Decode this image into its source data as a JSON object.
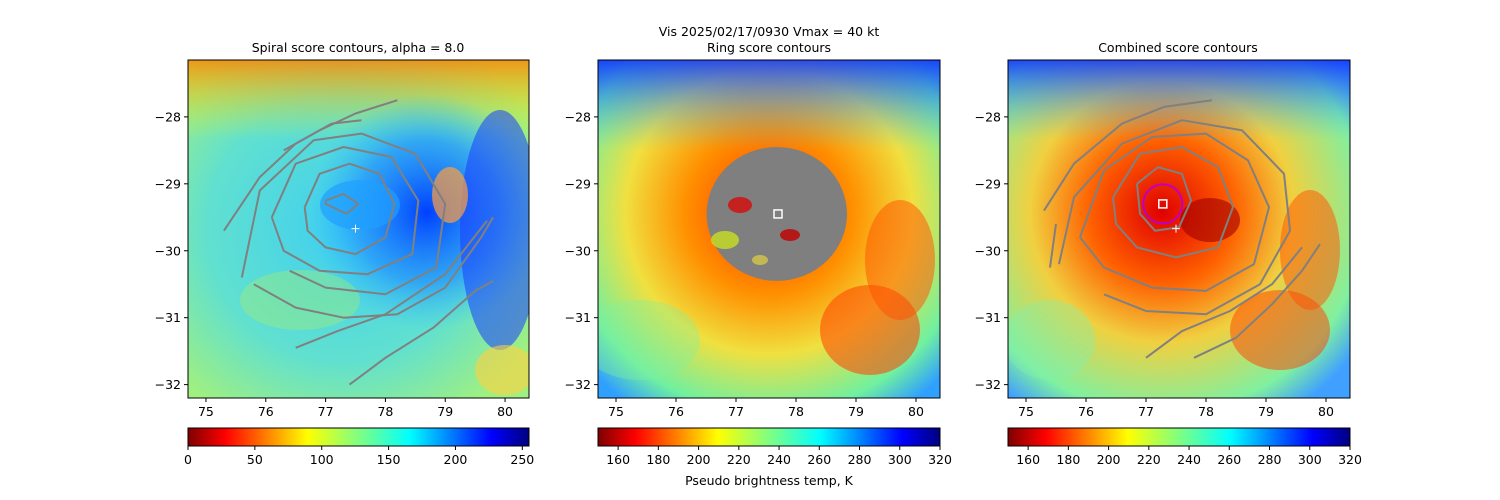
{
  "figure": {
    "suptitle_line1": "Vis  2025/02/17/0930    Vmax = 40 kt",
    "colorbar_label": "Pseudo brightness temp, K"
  },
  "colors": {
    "contour": "#808080",
    "center_marker": "#ffffff",
    "best_circle": "#c000c0"
  },
  "chart_data": [
    {
      "type": "heatmap",
      "title": "Spiral score contours, alpha =  8.0",
      "image": "visible satellite pseudo brightness temperature field (cyclone)",
      "colormap": "jet",
      "xlim": [
        74.7,
        80.4
      ],
      "ylim": [
        -32.2,
        -27.15
      ],
      "x_ticks": [
        "75",
        "76",
        "77",
        "78",
        "79",
        "80"
      ],
      "y_ticks": [
        "−28",
        "−29",
        "−30",
        "−31",
        "−32"
      ],
      "colorbar": {
        "vmin": 0,
        "vmax": 255,
        "ticks": [
          "0",
          "50",
          "100",
          "150",
          "200",
          "250"
        ],
        "reversed": false
      },
      "center_marker": {
        "x": 77.5,
        "y": -29.67,
        "marker": "+"
      },
      "contours": [
        {
          "points": [
            [
              77.0,
              -29.25
            ],
            [
              77.3,
              -29.15
            ],
            [
              77.55,
              -29.3
            ],
            [
              77.35,
              -29.45
            ],
            [
              77.0,
              -29.3
            ],
            [
              77.0,
              -29.25
            ]
          ]
        },
        {
          "points": [
            [
              76.65,
              -29.35
            ],
            [
              76.9,
              -28.85
            ],
            [
              77.4,
              -28.7
            ],
            [
              77.9,
              -28.85
            ],
            [
              78.15,
              -29.3
            ],
            [
              78.0,
              -29.8
            ],
            [
              77.5,
              -30.05
            ],
            [
              77.0,
              -29.95
            ],
            [
              76.7,
              -29.7
            ],
            [
              76.65,
              -29.35
            ]
          ]
        },
        {
          "points": [
            [
              76.1,
              -29.5
            ],
            [
              76.5,
              -28.7
            ],
            [
              77.3,
              -28.45
            ],
            [
              78.1,
              -28.6
            ],
            [
              78.55,
              -29.25
            ],
            [
              78.45,
              -30.05
            ],
            [
              77.7,
              -30.35
            ],
            [
              76.9,
              -30.3
            ],
            [
              76.3,
              -30.0
            ],
            [
              76.1,
              -29.5
            ]
          ]
        },
        {
          "points": [
            [
              75.6,
              -30.4
            ],
            [
              75.9,
              -29.1
            ],
            [
              76.8,
              -28.35
            ],
            [
              77.6,
              -28.25
            ],
            [
              78.5,
              -28.55
            ],
            [
              79.0,
              -29.3
            ],
            [
              78.85,
              -30.25
            ],
            [
              78.0,
              -30.65
            ],
            [
              77.0,
              -30.55
            ],
            [
              76.4,
              -30.3
            ]
          ]
        },
        {
          "points": [
            [
              75.3,
              -29.7
            ],
            [
              75.9,
              -28.9
            ],
            [
              76.5,
              -28.4
            ],
            [
              77.1,
              -28.1
            ],
            [
              77.6,
              -28.05
            ]
          ]
        },
        {
          "points": [
            [
              76.3,
              -28.5
            ],
            [
              76.9,
              -28.2
            ],
            [
              77.5,
              -27.95
            ],
            [
              78.2,
              -27.75
            ]
          ]
        },
        {
          "points": [
            [
              75.8,
              -30.5
            ],
            [
              76.5,
              -30.85
            ],
            [
              77.3,
              -31.0
            ],
            [
              78.2,
              -30.95
            ],
            [
              79.0,
              -30.55
            ],
            [
              79.6,
              -29.8
            ],
            [
              79.8,
              -29.5
            ]
          ]
        },
        {
          "points": [
            [
              76.5,
              -31.45
            ],
            [
              77.2,
              -31.2
            ],
            [
              78.0,
              -30.95
            ],
            [
              79.0,
              -30.35
            ],
            [
              79.7,
              -29.55
            ]
          ]
        },
        {
          "points": [
            [
              77.4,
              -32.0
            ],
            [
              78.0,
              -31.6
            ],
            [
              78.8,
              -31.15
            ],
            [
              79.5,
              -30.6
            ],
            [
              79.8,
              -30.45
            ]
          ]
        }
      ]
    },
    {
      "type": "heatmap",
      "title": "Ring score contours",
      "title_line2": "Ring score contours",
      "image": "visible satellite pseudo brightness temperature field with ring-score scatter",
      "colormap": "jet_r",
      "xlim": [
        74.7,
        80.4
      ],
      "ylim": [
        -32.2,
        -27.15
      ],
      "x_ticks": [
        "75",
        "76",
        "77",
        "78",
        "79",
        "80"
      ],
      "y_ticks": [
        "−28",
        "−29",
        "−30",
        "−31",
        "−32"
      ],
      "colorbar": {
        "vmin": 150,
        "vmax": 320,
        "ticks": [
          "160",
          "180",
          "200",
          "220",
          "240",
          "260",
          "280",
          "300",
          "320"
        ],
        "reversed": true
      },
      "ring_region": {
        "cx": 77.68,
        "cy": -29.45,
        "rx": 1.17,
        "ry": 1.0
      },
      "best_marker": {
        "x": 77.7,
        "y": -29.45,
        "marker": "square"
      }
    },
    {
      "type": "heatmap",
      "title": "Combined score contours",
      "image": "visible satellite pseudo brightness temperature field with combined-score contours",
      "colormap": "jet_r",
      "xlim": [
        74.7,
        80.4
      ],
      "ylim": [
        -32.2,
        -27.15
      ],
      "x_ticks": [
        "75",
        "76",
        "77",
        "78",
        "79",
        "80"
      ],
      "y_ticks": [
        "−28",
        "−29",
        "−30",
        "−31",
        "−32"
      ],
      "colorbar": {
        "vmin": 150,
        "vmax": 320,
        "ticks": [
          "160",
          "180",
          "200",
          "220",
          "240",
          "260",
          "280",
          "300",
          "320"
        ],
        "reversed": true
      },
      "center_marker": {
        "x": 77.5,
        "y": -29.67,
        "marker": "+"
      },
      "best_marker": {
        "x": 77.28,
        "y": -29.3,
        "marker": "square"
      },
      "best_circle": {
        "x": 77.28,
        "y": -29.3,
        "r": 0.25
      },
      "contours": [
        {
          "points": [
            [
              76.85,
              -29.0
            ],
            [
              77.2,
              -28.75
            ],
            [
              77.6,
              -28.85
            ],
            [
              77.75,
              -29.25
            ],
            [
              77.55,
              -29.65
            ],
            [
              77.15,
              -29.7
            ],
            [
              76.9,
              -29.45
            ],
            [
              76.85,
              -29.0
            ]
          ]
        },
        {
          "points": [
            [
              76.45,
              -29.2
            ],
            [
              76.9,
              -28.55
            ],
            [
              77.6,
              -28.45
            ],
            [
              78.2,
              -28.75
            ],
            [
              78.45,
              -29.35
            ],
            [
              78.2,
              -29.95
            ],
            [
              77.5,
              -30.1
            ],
            [
              76.85,
              -29.95
            ],
            [
              76.5,
              -29.6
            ],
            [
              76.45,
              -29.2
            ]
          ]
        },
        {
          "points": [
            [
              75.9,
              -29.8
            ],
            [
              76.3,
              -28.8
            ],
            [
              77.1,
              -28.3
            ],
            [
              78.0,
              -28.25
            ],
            [
              78.7,
              -28.65
            ],
            [
              79.05,
              -29.35
            ],
            [
              78.8,
              -30.2
            ],
            [
              78.0,
              -30.6
            ],
            [
              77.1,
              -30.55
            ],
            [
              76.3,
              -30.25
            ],
            [
              75.9,
              -29.8
            ]
          ]
        },
        {
          "points": [
            [
              75.55,
              -30.2
            ],
            [
              75.8,
              -29.2
            ],
            [
              76.6,
              -28.4
            ],
            [
              77.6,
              -28.05
            ],
            [
              78.6,
              -28.2
            ],
            [
              79.3,
              -28.85
            ],
            [
              79.4,
              -29.7
            ],
            [
              78.9,
              -30.5
            ],
            [
              78.0,
              -30.95
            ],
            [
              77.0,
              -30.9
            ],
            [
              76.3,
              -30.65
            ]
          ]
        },
        {
          "points": [
            [
              75.3,
              -29.4
            ],
            [
              75.8,
              -28.7
            ],
            [
              76.6,
              -28.1
            ],
            [
              77.3,
              -27.85
            ],
            [
              78.1,
              -27.75
            ]
          ]
        },
        {
          "points": [
            [
              75.4,
              -30.25
            ],
            [
              75.5,
              -29.6
            ]
          ]
        },
        {
          "points": [
            [
              77.0,
              -31.6
            ],
            [
              77.6,
              -31.2
            ],
            [
              78.4,
              -30.9
            ],
            [
              79.1,
              -30.5
            ],
            [
              79.6,
              -29.95
            ]
          ]
        },
        {
          "points": [
            [
              77.8,
              -31.6
            ],
            [
              78.5,
              -31.3
            ],
            [
              79.1,
              -30.8
            ],
            [
              79.6,
              -30.3
            ],
            [
              79.9,
              -29.9
            ]
          ]
        }
      ]
    }
  ]
}
